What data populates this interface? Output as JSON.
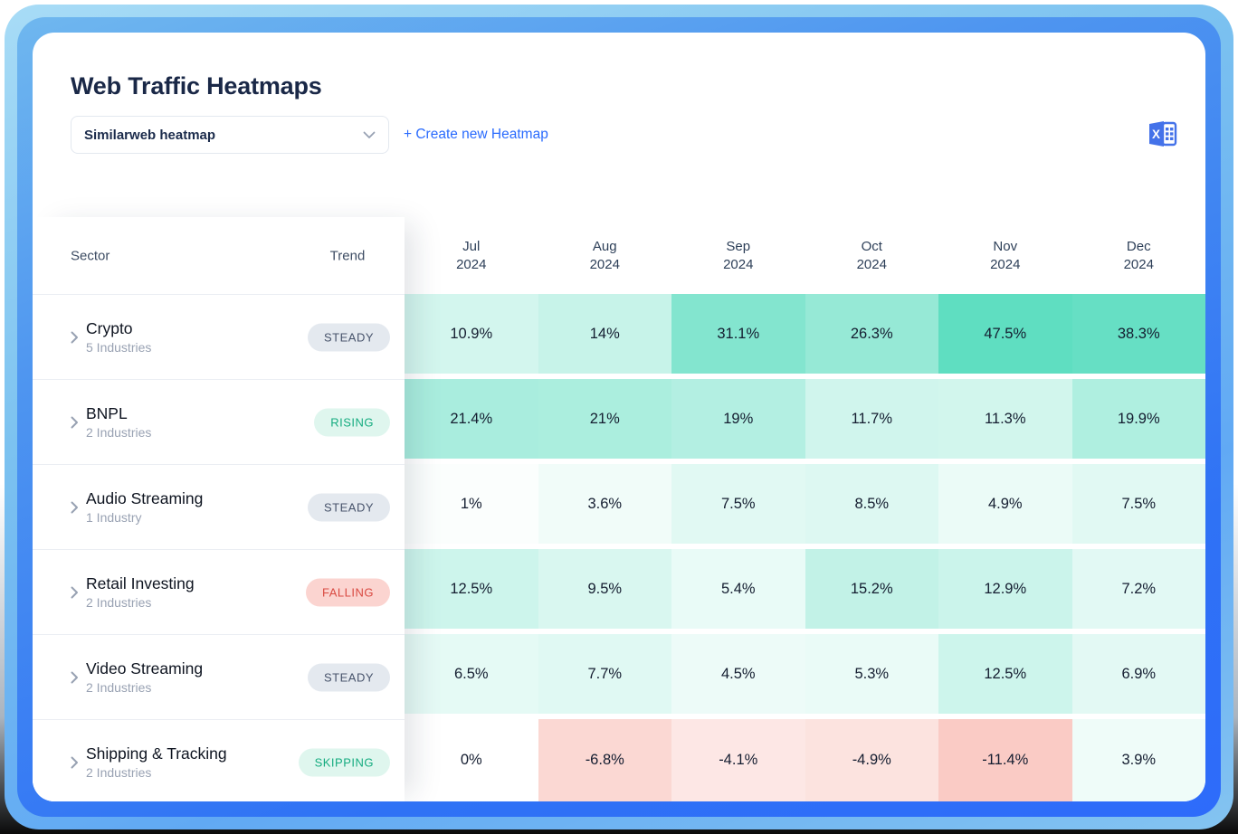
{
  "header": {
    "title": "Web Traffic Heatmaps",
    "dropdown_value": "Similarweb heatmap",
    "create_link_label": "+ Create new Heatmap",
    "export_icon": "excel-icon",
    "dropdown_chevron_icon": "chevron-down-icon"
  },
  "table": {
    "sector_header": "Sector",
    "trend_header": "Trend",
    "columns": [
      {
        "month": "Jul",
        "year": "2024"
      },
      {
        "month": "Aug",
        "year": "2024"
      },
      {
        "month": "Sep",
        "year": "2024"
      },
      {
        "month": "Oct",
        "year": "2024"
      },
      {
        "month": "Nov",
        "year": "2024"
      },
      {
        "month": "Dec",
        "year": "2024"
      }
    ],
    "rows": [
      {
        "sector": "Crypto",
        "industries": "5 Industries",
        "trend": "STEADY",
        "values": [
          10.9,
          14,
          31.1,
          26.3,
          47.5,
          38.3
        ],
        "labels": [
          "10.9%",
          "14%",
          "31.1%",
          "26.3%",
          "47.5%",
          "38.3%"
        ]
      },
      {
        "sector": "BNPL",
        "industries": "2 Industries",
        "trend": "RISING",
        "values": [
          21.4,
          21,
          19,
          11.7,
          11.3,
          19.9
        ],
        "labels": [
          "21.4%",
          "21%",
          "19%",
          "11.7%",
          "11.3%",
          "19.9%"
        ]
      },
      {
        "sector": "Audio Streaming",
        "industries": "1 Industry",
        "trend": "STEADY",
        "values": [
          1,
          3.6,
          7.5,
          8.5,
          4.9,
          7.5
        ],
        "labels": [
          "1%",
          "3.6%",
          "7.5%",
          "8.5%",
          "4.9%",
          "7.5%"
        ]
      },
      {
        "sector": "Retail Investing",
        "industries": "2 Industries",
        "trend": "FALLING",
        "values": [
          12.5,
          9.5,
          5.4,
          15.2,
          12.9,
          7.2
        ],
        "labels": [
          "12.5%",
          "9.5%",
          "5.4%",
          "15.2%",
          "12.9%",
          "7.2%"
        ]
      },
      {
        "sector": "Video Streaming",
        "industries": "2 Industries",
        "trend": "STEADY",
        "values": [
          6.5,
          7.7,
          4.5,
          5.3,
          12.5,
          6.9
        ],
        "labels": [
          "6.5%",
          "7.7%",
          "4.5%",
          "5.3%",
          "12.5%",
          "6.9%"
        ]
      },
      {
        "sector": "Shipping & Tracking",
        "industries": "2 Industries",
        "trend": "SKIPPING",
        "values": [
          0,
          -6.8,
          -4.1,
          -4.9,
          -11.4,
          3.9
        ],
        "labels": [
          "0%",
          "-6.8%",
          "-4.1%",
          "-4.9%",
          "-11.4%",
          "3.9%"
        ]
      }
    ]
  },
  "chart_data": {
    "type": "heatmap",
    "title": "Web Traffic Heatmaps",
    "x_categories": [
      "Jul 2024",
      "Aug 2024",
      "Sep 2024",
      "Oct 2024",
      "Nov 2024",
      "Dec 2024"
    ],
    "y_categories": [
      "Crypto",
      "BNPL",
      "Audio Streaming",
      "Retail Investing",
      "Video Streaming",
      "Shipping & Tracking"
    ],
    "values_percent": [
      [
        10.9,
        14,
        31.1,
        26.3,
        47.5,
        38.3
      ],
      [
        21.4,
        21,
        19,
        11.7,
        11.3,
        19.9
      ],
      [
        1,
        3.6,
        7.5,
        8.5,
        4.9,
        7.5
      ],
      [
        12.5,
        9.5,
        5.4,
        15.2,
        12.9,
        7.2
      ],
      [
        6.5,
        7.7,
        4.5,
        5.3,
        12.5,
        6.9
      ],
      [
        0,
        -6.8,
        -4.1,
        -4.9,
        -11.4,
        3.9
      ]
    ],
    "color_positive": "green",
    "color_negative": "red"
  },
  "heatmap_scale": {
    "positive_max": 40,
    "positive_color": "#5FDEC1",
    "negative_max": 9,
    "negative_color": "#FACBC5"
  },
  "trend_styles": {
    "STEADY": {
      "bg": "#E4E9EF",
      "fg": "#47536B"
    },
    "RISING": {
      "bg": "#DFF6EE",
      "fg": "#16AC80"
    },
    "FALLING": {
      "bg": "#FBD4D0",
      "fg": "#D94A42"
    },
    "SKIPPING": {
      "bg": "#DFF6EE",
      "fg": "#16AC80"
    }
  },
  "colors": {
    "accent_blue": "#2A6BFE",
    "excel_blue": "#4472E9",
    "title_navy": "#1A2847",
    "frame_blue": "#2E6BFA"
  }
}
